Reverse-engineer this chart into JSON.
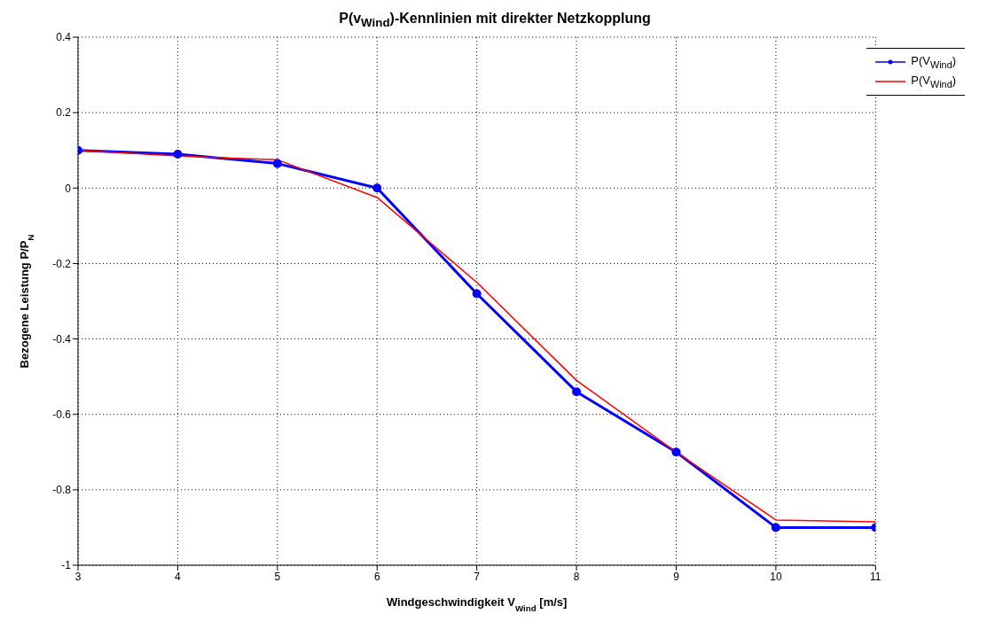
{
  "chart_data": {
    "type": "line",
    "title": "P(v$_{Wind}$)-Kennlinien mit direkter Netzkopplung",
    "xlabel": "Windgeschwindigkeit V$_{Wind}$ [m/s]",
    "ylabel": "Bezogene Leistung P/P$_{N}$",
    "x": [
      3,
      4,
      5,
      6,
      7,
      8,
      9,
      10,
      11
    ],
    "series": [
      {
        "name": "P(V$_{Wind}$)",
        "color": "#0000ff",
        "marker": "circle",
        "values": [
          0.1,
          0.09,
          0.065,
          0.0,
          -0.28,
          -0.54,
          -0.7,
          -0.9,
          -0.9
        ]
      },
      {
        "name": "P(V$_{Wind}$)",
        "color": "#ff0000",
        "marker": "none",
        "values": [
          0.1,
          0.085,
          0.075,
          -0.025,
          -0.25,
          -0.51,
          -0.7,
          -0.88,
          -0.885
        ]
      }
    ],
    "xlim": [
      3,
      11
    ],
    "xticks": [
      3,
      4,
      5,
      6,
      7,
      8,
      9,
      10,
      11
    ],
    "ylim": [
      -1,
      0.4
    ],
    "yticks": [
      -1,
      -0.8,
      -0.6,
      -0.4,
      -0.2,
      0,
      0.2,
      0.4
    ],
    "grid": true,
    "line_style": "solid",
    "legend": "top right"
  }
}
